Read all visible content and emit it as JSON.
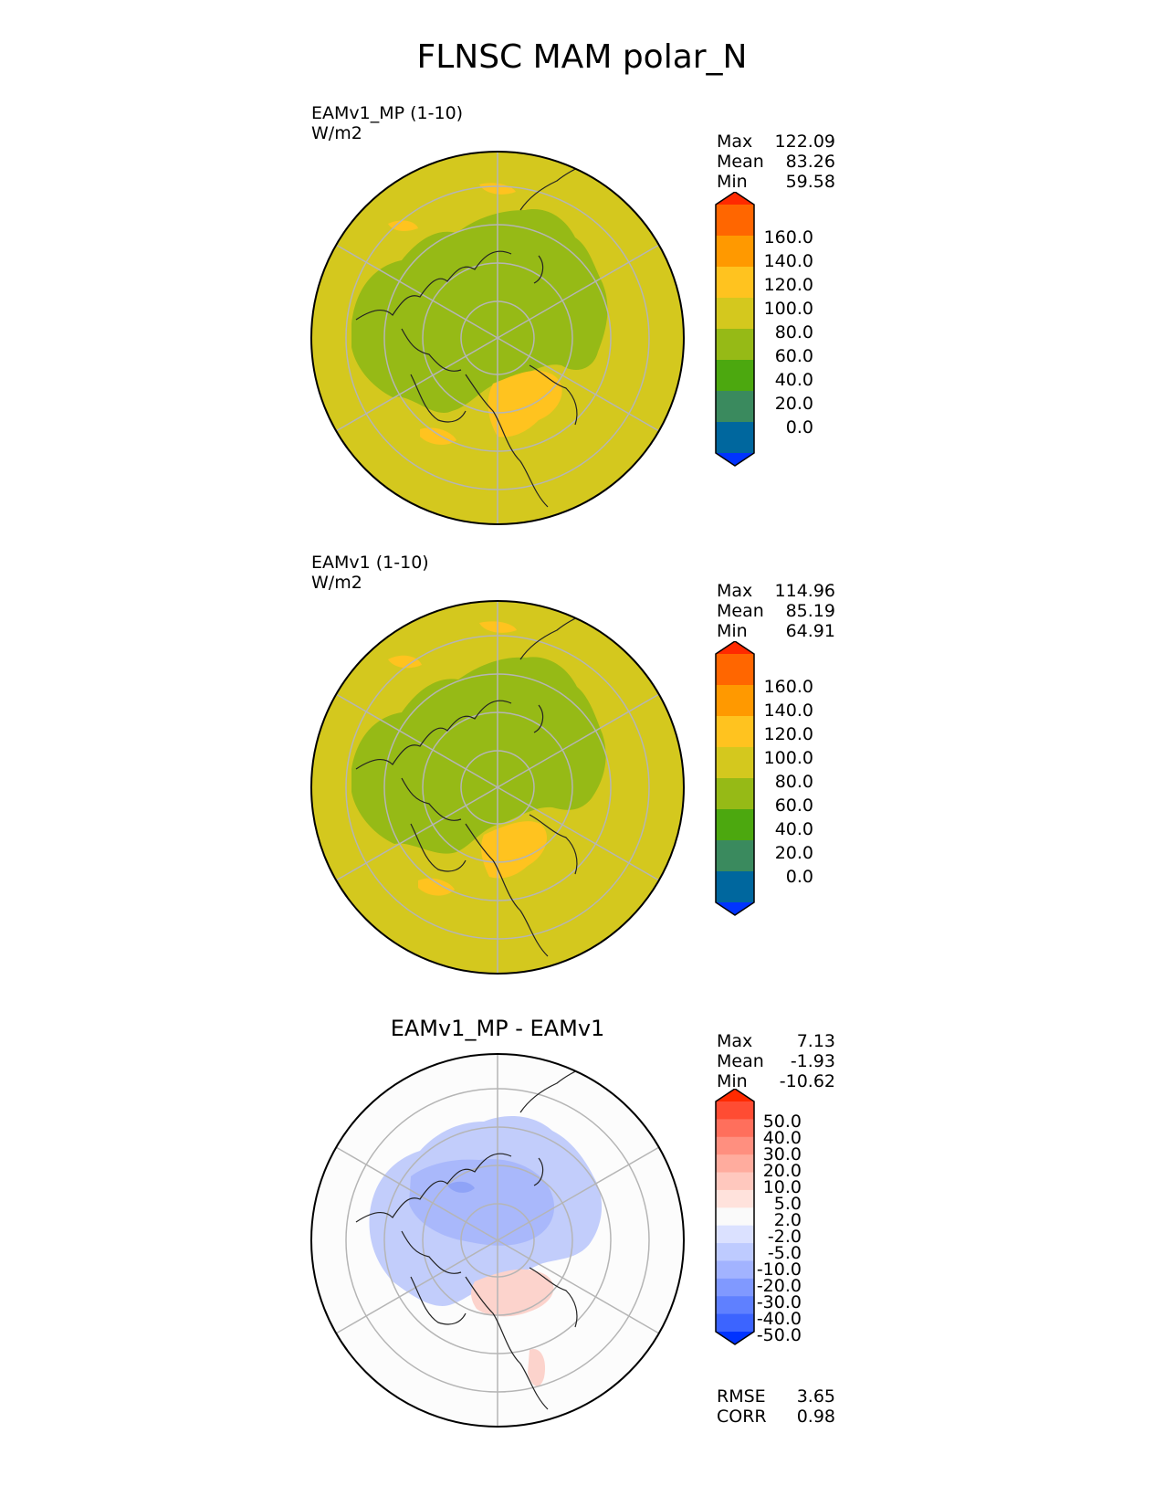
{
  "title": "FLNSC MAM polar_N",
  "panels": [
    {
      "title_line1": "EAMv1_MP (1-10)",
      "title_line2": "W/m2",
      "stats": [
        {
          "label": "Max",
          "value": "122.09"
        },
        {
          "label": "Mean",
          "value": "83.26"
        },
        {
          "label": "Min",
          "value": "59.58"
        }
      ]
    },
    {
      "title_line1": "EAMv1 (1-10)",
      "title_line2": "W/m2",
      "stats": [
        {
          "label": "Max",
          "value": "114.96"
        },
        {
          "label": "Mean",
          "value": "85.19"
        },
        {
          "label": "Min",
          "value": "64.91"
        }
      ]
    },
    {
      "title": "EAMv1_MP - EAMv1",
      "stats": [
        {
          "label": "Max",
          "value": "7.13"
        },
        {
          "label": "Mean",
          "value": "-1.93"
        },
        {
          "label": "Min",
          "value": "-10.62"
        }
      ],
      "metrics": [
        {
          "label": "RMSE",
          "value": "3.65"
        },
        {
          "label": "CORR",
          "value": "0.98"
        }
      ]
    }
  ],
  "chart_data": {
    "type": "heatmap",
    "projection": "north polar stereographic",
    "variable": "FLNSC",
    "season": "MAM",
    "region": "polar_N",
    "fields": [
      {
        "name": "EAMv1_MP (1-10)",
        "units": "W/m2",
        "max": 122.09,
        "mean": 83.26,
        "min": 59.58
      },
      {
        "name": "EAMv1 (1-10)",
        "units": "W/m2",
        "max": 114.96,
        "mean": 85.19,
        "min": 64.91
      },
      {
        "name": "EAMv1_MP - EAMv1",
        "units": "W/m2",
        "max": 7.13,
        "mean": -1.93,
        "min": -10.62,
        "rmse": 3.65,
        "corr": 0.98
      }
    ],
    "colorbar_main": {
      "tick_labels": [
        "160.0",
        "140.0",
        "120.0",
        "100.0",
        "80.0",
        "60.0",
        "40.0",
        "20.0",
        "0.0"
      ],
      "colors_top_to_bottom": [
        "#ff2a00",
        "#ff6600",
        "#ff9900",
        "#ffc31f",
        "#d4c81e",
        "#96ba16",
        "#4ca80f",
        "#3a8a5e",
        "#00679e",
        "#0033ff"
      ]
    },
    "colorbar_diff": {
      "tick_labels": [
        "50.0",
        "40.0",
        "30.0",
        "20.0",
        "10.0",
        "5.0",
        "2.0",
        "-2.0",
        "-5.0",
        "-10.0",
        "-20.0",
        "-30.0",
        "-40.0",
        "-50.0"
      ],
      "colors_top_to_bottom": [
        "#ff2a00",
        "#ff4c33",
        "#ff6f5c",
        "#ff8f7f",
        "#ffac9e",
        "#ffc8be",
        "#ffe2dc",
        "#fafafa",
        "#dbe1ff",
        "#becbff",
        "#a2b3ff",
        "#8099ff",
        "#5f80ff",
        "#3c64ff",
        "#0033ff"
      ]
    },
    "map_fill": {
      "base": "#d4c81e",
      "interior": "#96ba16",
      "warm": "#ffc31f",
      "diff_base": "#fcfcfc",
      "diff_neg": "#c2cdfb",
      "diff_pos": "#fcd3cc"
    }
  }
}
